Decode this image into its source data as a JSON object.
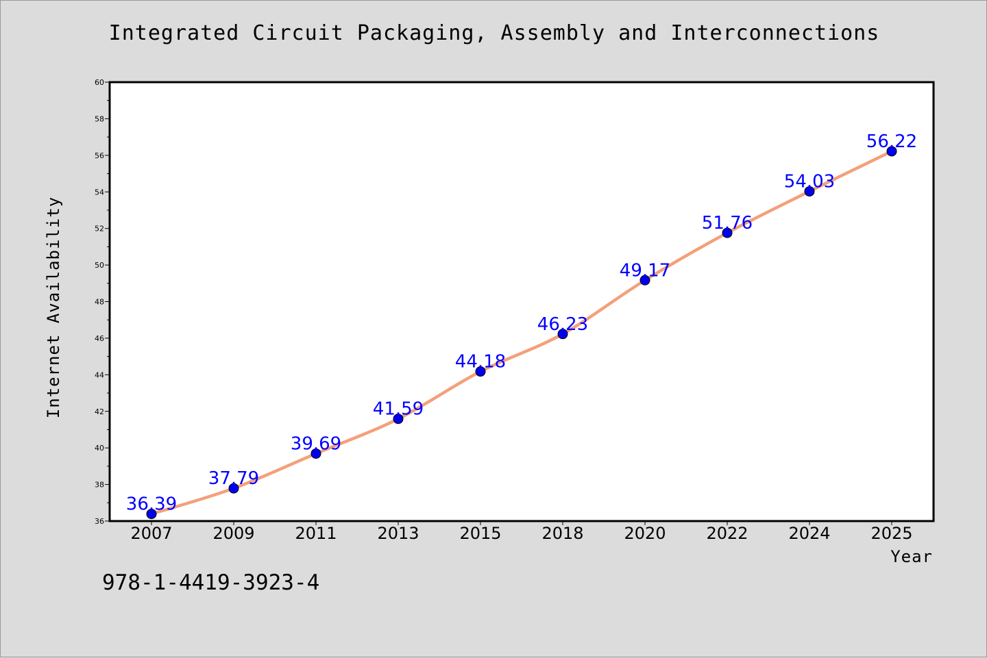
{
  "figure": {
    "isbn_text": "978-1-4419-3923-4"
  },
  "chart_data": {
    "type": "line",
    "title": "Integrated Circuit Packaging, Assembly and Interconnections",
    "xlabel": "Year",
    "ylabel": "Internet Availability",
    "categories": [
      "2007",
      "2009",
      "2011",
      "2013",
      "2015",
      "2018",
      "2020",
      "2022",
      "2024",
      "2025"
    ],
    "series": [
      {
        "values": [
          36.39,
          37.79,
          39.69,
          41.59,
          44.18,
          46.23,
          49.17,
          51.76,
          54.03,
          56.22
        ],
        "line_color": "#f4a07a",
        "marker_color": "#0000ee",
        "label_color": "#0000ff"
      }
    ],
    "ylim": [
      36,
      60
    ],
    "yticks": [
      36,
      38,
      40,
      42,
      44,
      46,
      48,
      50,
      52,
      54,
      56,
      58,
      60
    ],
    "data_labels": true,
    "grid": false,
    "legend": "none"
  }
}
